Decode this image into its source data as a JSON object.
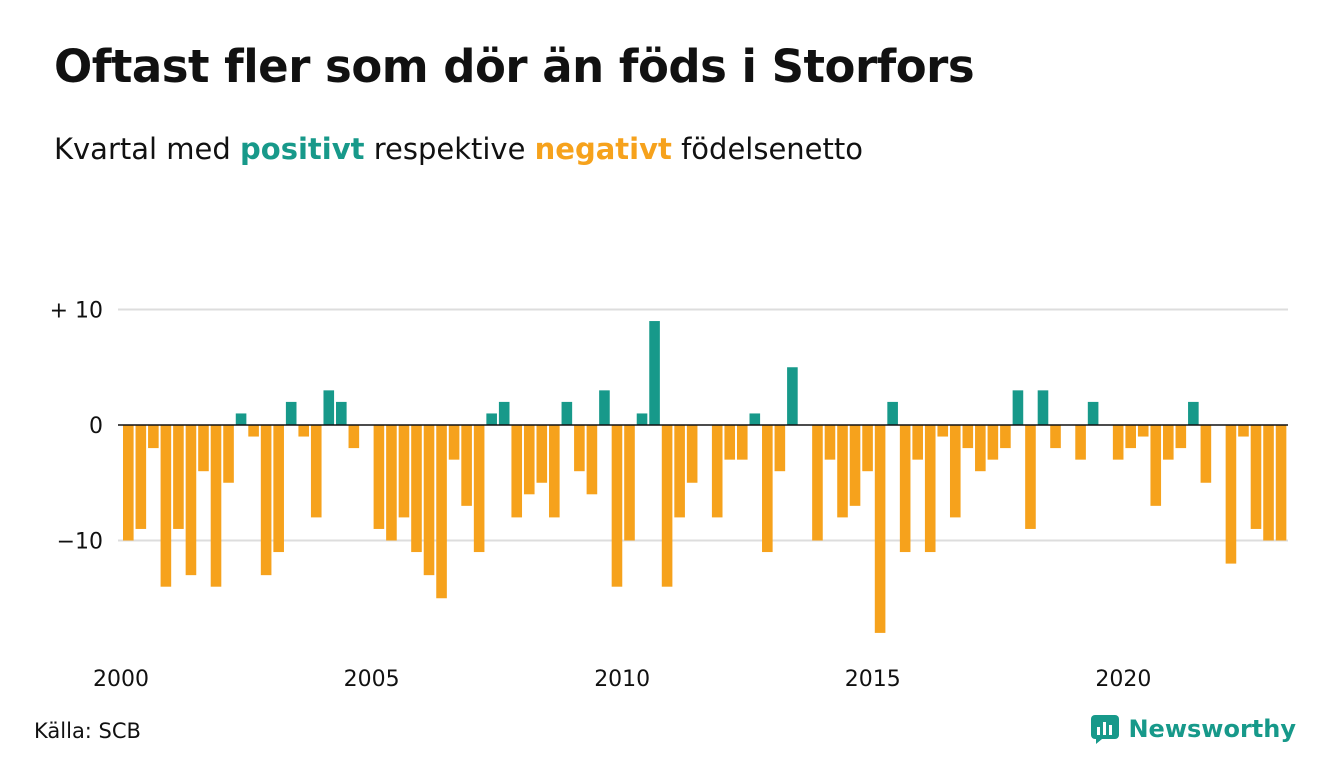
{
  "title": "Oftast fler som dör än föds i Storfors",
  "subtitle": {
    "prefix": "Kvartal med",
    "positive": "positivt",
    "middle": "respektive",
    "negative": "negativt",
    "suffix": "födelsenetto"
  },
  "source": "Källa: SCB",
  "brand": "Newsworthy",
  "colors": {
    "positive": "#17998a",
    "negative": "#f6a21c",
    "grid": "#dddddd",
    "zero": "#111111"
  },
  "chart_data": {
    "type": "bar",
    "x_start": "2000 Q1",
    "x_ticks": [
      "2000",
      "2005",
      "2010",
      "2015",
      "2020"
    ],
    "y_ticks": [
      "+ 10",
      "0",
      "−10"
    ],
    "y_tick_values": [
      10,
      0,
      -10
    ],
    "ylim": [
      -19,
      10
    ],
    "grid": true,
    "values": [
      -10,
      -9,
      -2,
      -14,
      -9,
      -13,
      -4,
      -14,
      -5,
      1,
      -1,
      -13,
      -11,
      2,
      -1,
      -8,
      3,
      2,
      -2,
      0,
      -9,
      -10,
      -8,
      -11,
      -13,
      -15,
      -3,
      -7,
      -11,
      1,
      2,
      -8,
      -6,
      -5,
      -8,
      2,
      -4,
      -6,
      3,
      -14,
      -10,
      1,
      9,
      -14,
      -8,
      -5,
      0,
      -8,
      -3,
      -3,
      1,
      -11,
      -4,
      5,
      0,
      -10,
      -3,
      -8,
      -7,
      -4,
      -18,
      2,
      -11,
      -3,
      -11,
      -1,
      -8,
      -2,
      -4,
      -3,
      -2,
      3,
      -9,
      3,
      -2,
      0,
      -3,
      2,
      0,
      -3,
      -2,
      -1,
      -7,
      -3,
      -2,
      2,
      -5,
      0,
      -12,
      -1,
      -9,
      -10,
      -10
    ]
  }
}
